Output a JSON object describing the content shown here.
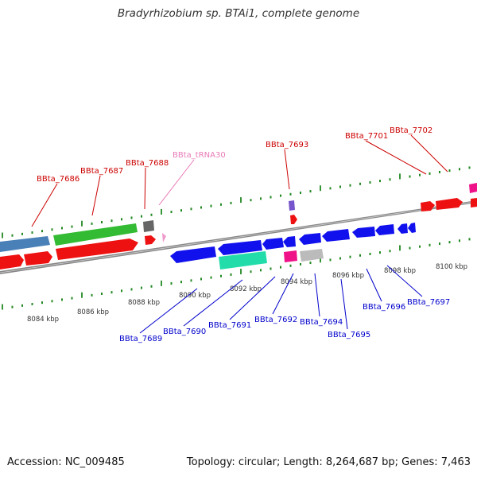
{
  "title": "Bradyrhizobium sp. BTAi1, complete genome",
  "footer": {
    "accession": "Accession: NC_009485",
    "summary": "Topology: circular; Length: 8,264,687 bp; Genes: 7,463"
  },
  "colors": {
    "forward_label": "#cc0000",
    "reverse_label": "#0000cc",
    "trna_label": "#e87ab8",
    "backbone": "#888888",
    "tick": "#228822"
  },
  "scale_labels": [
    "8084 kbp",
    "8086 kbp",
    "8088 kbp",
    "8090 kbp",
    "8092 kbp",
    "8094 kbp",
    "8096 kbp",
    "8098 kbp",
    "8100 kbp"
  ],
  "forward_gene_labels": [
    "BBta_7686",
    "BBta_7687",
    "BBta_7688",
    "BBta_tRNA30",
    "BBta_7693",
    "BBta_7701",
    "BBta_7702"
  ],
  "reverse_gene_labels": [
    "BBta_7689",
    "BBta_7690",
    "BBta_7691",
    "BBta_7692",
    "BBta_7694",
    "BBta_7695",
    "BBta_7696",
    "BBta_7697"
  ]
}
